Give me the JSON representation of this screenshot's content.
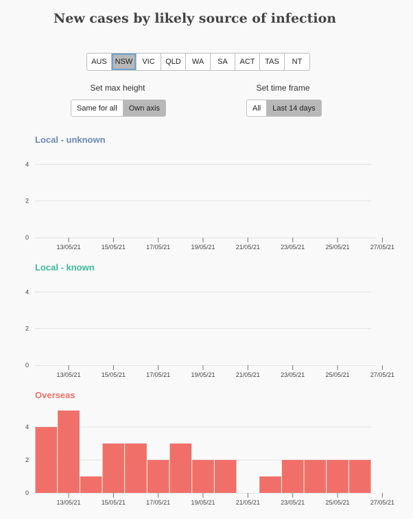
{
  "title": "New cases by likely source of infection",
  "states": {
    "items": [
      "AUS",
      "NSW",
      "VIC",
      "QLD",
      "WA",
      "SA",
      "ACT",
      "TAS",
      "NT"
    ],
    "selected": "NSW"
  },
  "max_height": {
    "label": "Set max height",
    "options": [
      "Same for all",
      "Own axis"
    ],
    "selected": "Own axis"
  },
  "time_frame": {
    "label": "Set time frame",
    "options": [
      "All",
      "Last 14 days"
    ],
    "selected": "Last 14 days"
  },
  "colors": {
    "unknown": "#6a8ab5",
    "known": "#3db89b",
    "overseas": "#f07069",
    "grid": "#e4e4e4",
    "axis": "#777777"
  },
  "chart_data": [
    {
      "type": "bar",
      "title": "Local - unknown",
      "ylim": [
        0,
        4.5
      ],
      "yticks": [
        0,
        2,
        4
      ],
      "x": [
        "12/05/21",
        "13/05/21",
        "14/05/21",
        "15/05/21",
        "16/05/21",
        "17/05/21",
        "18/05/21",
        "19/05/21",
        "20/05/21",
        "21/05/21",
        "22/05/21",
        "23/05/21",
        "24/05/21",
        "25/05/21",
        "26/05/21"
      ],
      "xticks": [
        "13/05/21",
        "15/05/21",
        "17/05/21",
        "19/05/21",
        "21/05/21",
        "23/05/21",
        "25/05/21",
        "27/05/21"
      ],
      "values": [
        0,
        0,
        0,
        0,
        0,
        0,
        0,
        0,
        0,
        0,
        0,
        0,
        0,
        0,
        0
      ]
    },
    {
      "type": "bar",
      "title": "Local - known",
      "ylim": [
        0,
        4.5
      ],
      "yticks": [
        0,
        2,
        4
      ],
      "x": [
        "12/05/21",
        "13/05/21",
        "14/05/21",
        "15/05/21",
        "16/05/21",
        "17/05/21",
        "18/05/21",
        "19/05/21",
        "20/05/21",
        "21/05/21",
        "22/05/21",
        "23/05/21",
        "24/05/21",
        "25/05/21",
        "26/05/21"
      ],
      "xticks": [
        "13/05/21",
        "15/05/21",
        "17/05/21",
        "19/05/21",
        "21/05/21",
        "23/05/21",
        "25/05/21",
        "27/05/21"
      ],
      "values": [
        0,
        0,
        0,
        0,
        0,
        0,
        0,
        0,
        0,
        0,
        0,
        0,
        0,
        0,
        0
      ]
    },
    {
      "type": "bar",
      "title": "Overseas",
      "ylim": [
        0,
        5
      ],
      "yticks": [
        0,
        2,
        4
      ],
      "x": [
        "12/05/21",
        "13/05/21",
        "14/05/21",
        "15/05/21",
        "16/05/21",
        "17/05/21",
        "18/05/21",
        "19/05/21",
        "20/05/21",
        "21/05/21",
        "22/05/21",
        "23/05/21",
        "24/05/21",
        "25/05/21",
        "26/05/21"
      ],
      "xticks": [
        "13/05/21",
        "15/05/21",
        "17/05/21",
        "19/05/21",
        "21/05/21",
        "23/05/21",
        "25/05/21",
        "27/05/21"
      ],
      "values": [
        4,
        5,
        1,
        3,
        3,
        2,
        3,
        2,
        2,
        0,
        1,
        2,
        2,
        2,
        2
      ]
    }
  ]
}
